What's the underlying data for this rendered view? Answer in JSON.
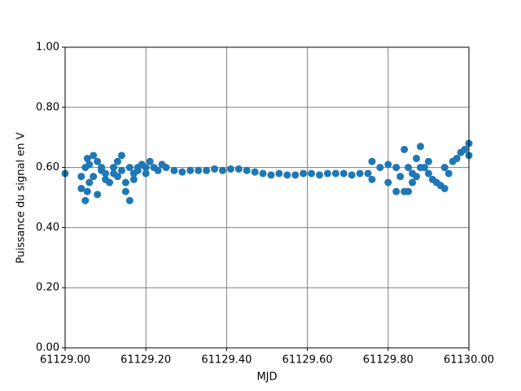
{
  "chart_data": {
    "type": "scatter",
    "x_label": "MJD",
    "y_label": "Puissance du signal en V",
    "color": "#1f77b4",
    "grid": true,
    "xlim": [
      61129.0,
      61130.0
    ],
    "xticks": [
      {
        "value": 61129.0,
        "label": "61129.00"
      },
      {
        "value": 61129.2,
        "label": "61129.20"
      },
      {
        "value": 61129.4,
        "label": "61129.40"
      },
      {
        "value": 61129.6,
        "label": "61129.60"
      },
      {
        "value": 61129.8,
        "label": "61129.80"
      },
      {
        "value": 61130.0,
        "label": "61130.00"
      }
    ],
    "ylim": [
      0,
      1
    ],
    "yticks": [
      {
        "value": 0,
        "label": "0.00"
      },
      {
        "value": 0.2,
        "label": "0.20"
      },
      {
        "value": 0.4,
        "label": "0.40"
      },
      {
        "value": 0.6,
        "label": "0.60"
      },
      {
        "value": 0.8,
        "label": "0.80"
      },
      {
        "value": 1,
        "label": "1.00"
      }
    ],
    "x": [
      61129.0,
      61129.04,
      61129.04,
      61129.05,
      61129.05,
      61129.055,
      61129.055,
      61129.06,
      61129.06,
      61129.07,
      61129.07,
      61129.08,
      61129.08,
      61129.09,
      61129.09,
      61129.1,
      61129.1,
      61129.11,
      61129.12,
      61129.12,
      61129.13,
      61129.13,
      61129.14,
      61129.14,
      61129.15,
      61129.15,
      61129.16,
      61129.16,
      61129.17,
      61129.17,
      61129.18,
      61129.18,
      61129.19,
      61129.2,
      61129.2,
      61129.21,
      61129.22,
      61129.23,
      61129.24,
      61129.25,
      61129.27,
      61129.29,
      61129.31,
      61129.33,
      61129.35,
      61129.37,
      61129.39,
      61129.41,
      61129.43,
      61129.45,
      61129.47,
      61129.49,
      61129.51,
      61129.53,
      61129.55,
      61129.57,
      61129.59,
      61129.61,
      61129.63,
      61129.65,
      61129.67,
      61129.69,
      61129.71,
      61129.73,
      61129.75,
      61129.76,
      61129.76,
      61129.78,
      61129.8,
      61129.8,
      61129.82,
      61129.82,
      61129.83,
      61129.84,
      61129.84,
      61129.85,
      61129.85,
      61129.86,
      61129.86,
      61129.87,
      61129.87,
      61129.88,
      61129.88,
      61129.89,
      61129.9,
      61129.9,
      61129.91,
      61129.92,
      61129.93,
      61129.94,
      61129.94,
      61129.95,
      61129.96,
      61129.97,
      61129.98,
      61129.99,
      61130.0,
      61130.0
    ],
    "values": [
      0.58,
      0.53,
      0.57,
      0.49,
      0.6,
      0.63,
      0.52,
      0.55,
      0.61,
      0.64,
      0.57,
      0.51,
      0.62,
      0.59,
      0.6,
      0.58,
      0.56,
      0.55,
      0.58,
      0.6,
      0.62,
      0.57,
      0.64,
      0.59,
      0.55,
      0.52,
      0.49,
      0.6,
      0.56,
      0.58,
      0.6,
      0.59,
      0.61,
      0.6,
      0.58,
      0.62,
      0.6,
      0.59,
      0.61,
      0.6,
      0.59,
      0.585,
      0.59,
      0.59,
      0.59,
      0.595,
      0.59,
      0.595,
      0.595,
      0.59,
      0.585,
      0.58,
      0.575,
      0.58,
      0.575,
      0.575,
      0.58,
      0.58,
      0.575,
      0.58,
      0.58,
      0.58,
      0.575,
      0.58,
      0.58,
      0.62,
      0.56,
      0.6,
      0.61,
      0.55,
      0.52,
      0.6,
      0.57,
      0.66,
      0.52,
      0.52,
      0.6,
      0.58,
      0.55,
      0.63,
      0.57,
      0.67,
      0.6,
      0.6,
      0.58,
      0.62,
      0.56,
      0.55,
      0.54,
      0.53,
      0.6,
      0.58,
      0.62,
      0.63,
      0.65,
      0.66,
      0.68,
      0.64
    ]
  }
}
